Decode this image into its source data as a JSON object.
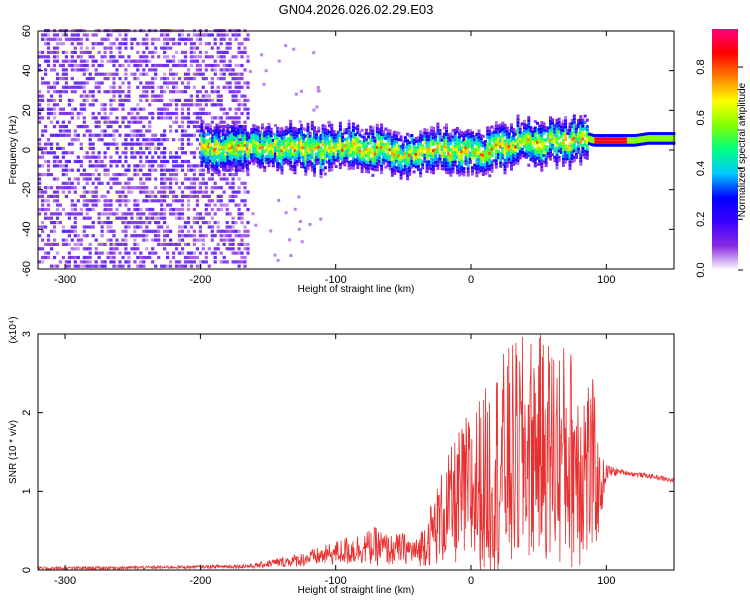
{
  "figure_title": "GN04.2026.026.02.29.E03",
  "chart_data": [
    {
      "type": "heatmap",
      "title": "GN04.2026.026.02.29.E03",
      "xlabel": "Height of straight line (km)",
      "ylabel": "Frequency (Hz)",
      "xlim": [
        -320,
        150
      ],
      "ylim": [
        -60,
        60
      ],
      "xticks": [
        -300,
        -200,
        -100,
        0,
        100
      ],
      "yticks": [
        -60,
        -40,
        -20,
        0,
        20,
        40,
        60
      ],
      "grid": false,
      "colorbar": {
        "label": "Normalized spectral amplitude",
        "range": [
          0,
          0.95
        ],
        "ticks": [
          0.0,
          0.2,
          0.4,
          0.6,
          0.8
        ],
        "colormap": [
          "#ffffff",
          "#8a2be2",
          "#3a00ff",
          "#0000ff",
          "#00c8ff",
          "#00ff80",
          "#80ff00",
          "#ffff00",
          "#ff8000",
          "#ff0000",
          "#ff0080"
        ]
      },
      "ridge": {
        "x": [
          -190,
          -170,
          -150,
          -130,
          -110,
          -90,
          -70,
          -50,
          -30,
          -10,
          0,
          10,
          20,
          30,
          40,
          50,
          60,
          70,
          80,
          90,
          100,
          110,
          120,
          130,
          140,
          150
        ],
        "y": [
          0,
          0,
          1,
          0,
          -1,
          1,
          -1,
          -3,
          0,
          -2,
          -1,
          -3,
          1,
          2,
          3,
          1,
          4,
          2,
          6,
          4,
          4,
          4,
          4,
          5,
          5,
          5
        ]
      },
      "noise_region_x": [
        -320,
        -165
      ]
    },
    {
      "type": "line",
      "xlabel": "Height of straight line (km)",
      "ylabel": "SNR (10 * v/v)",
      "y_multiplier": "(x10⁴)",
      "xlim": [
        -320,
        150
      ],
      "ylim": [
        0,
        3
      ],
      "xticks": [
        -300,
        -200,
        -100,
        0,
        100
      ],
      "yticks": [
        0,
        1,
        2,
        3
      ],
      "grid": false,
      "series": [
        {
          "color": "#e83030",
          "x": [
            -320,
            -250,
            -200,
            -160,
            -150,
            -130,
            -110,
            -100,
            -90,
            -80,
            -70,
            -60,
            -50,
            -40,
            -30,
            -20,
            -10,
            0,
            10,
            20,
            30,
            40,
            50,
            60,
            70,
            80,
            90,
            95,
            100,
            110,
            120,
            130,
            140,
            150
          ],
          "y": [
            0.02,
            0.03,
            0.04,
            0.05,
            0.08,
            0.12,
            0.18,
            0.22,
            0.25,
            0.28,
            0.3,
            0.25,
            0.28,
            0.22,
            0.45,
            0.7,
            0.9,
            1.0,
            1.1,
            1.3,
            1.4,
            1.5,
            1.6,
            1.5,
            1.45,
            1.4,
            1.25,
            1.0,
            1.25,
            1.25,
            1.22,
            1.2,
            1.17,
            1.13
          ],
          "spread": [
            0.02,
            0.02,
            0.02,
            0.03,
            0.05,
            0.08,
            0.12,
            0.15,
            0.2,
            0.2,
            0.25,
            0.2,
            0.2,
            0.18,
            0.4,
            0.65,
            0.85,
            1.1,
            1.2,
            1.4,
            1.5,
            1.5,
            1.4,
            1.5,
            1.45,
            1.4,
            1.2,
            0.5,
            0.1,
            0.03,
            0.03,
            0.03,
            0.03,
            0.03
          ]
        }
      ]
    }
  ]
}
